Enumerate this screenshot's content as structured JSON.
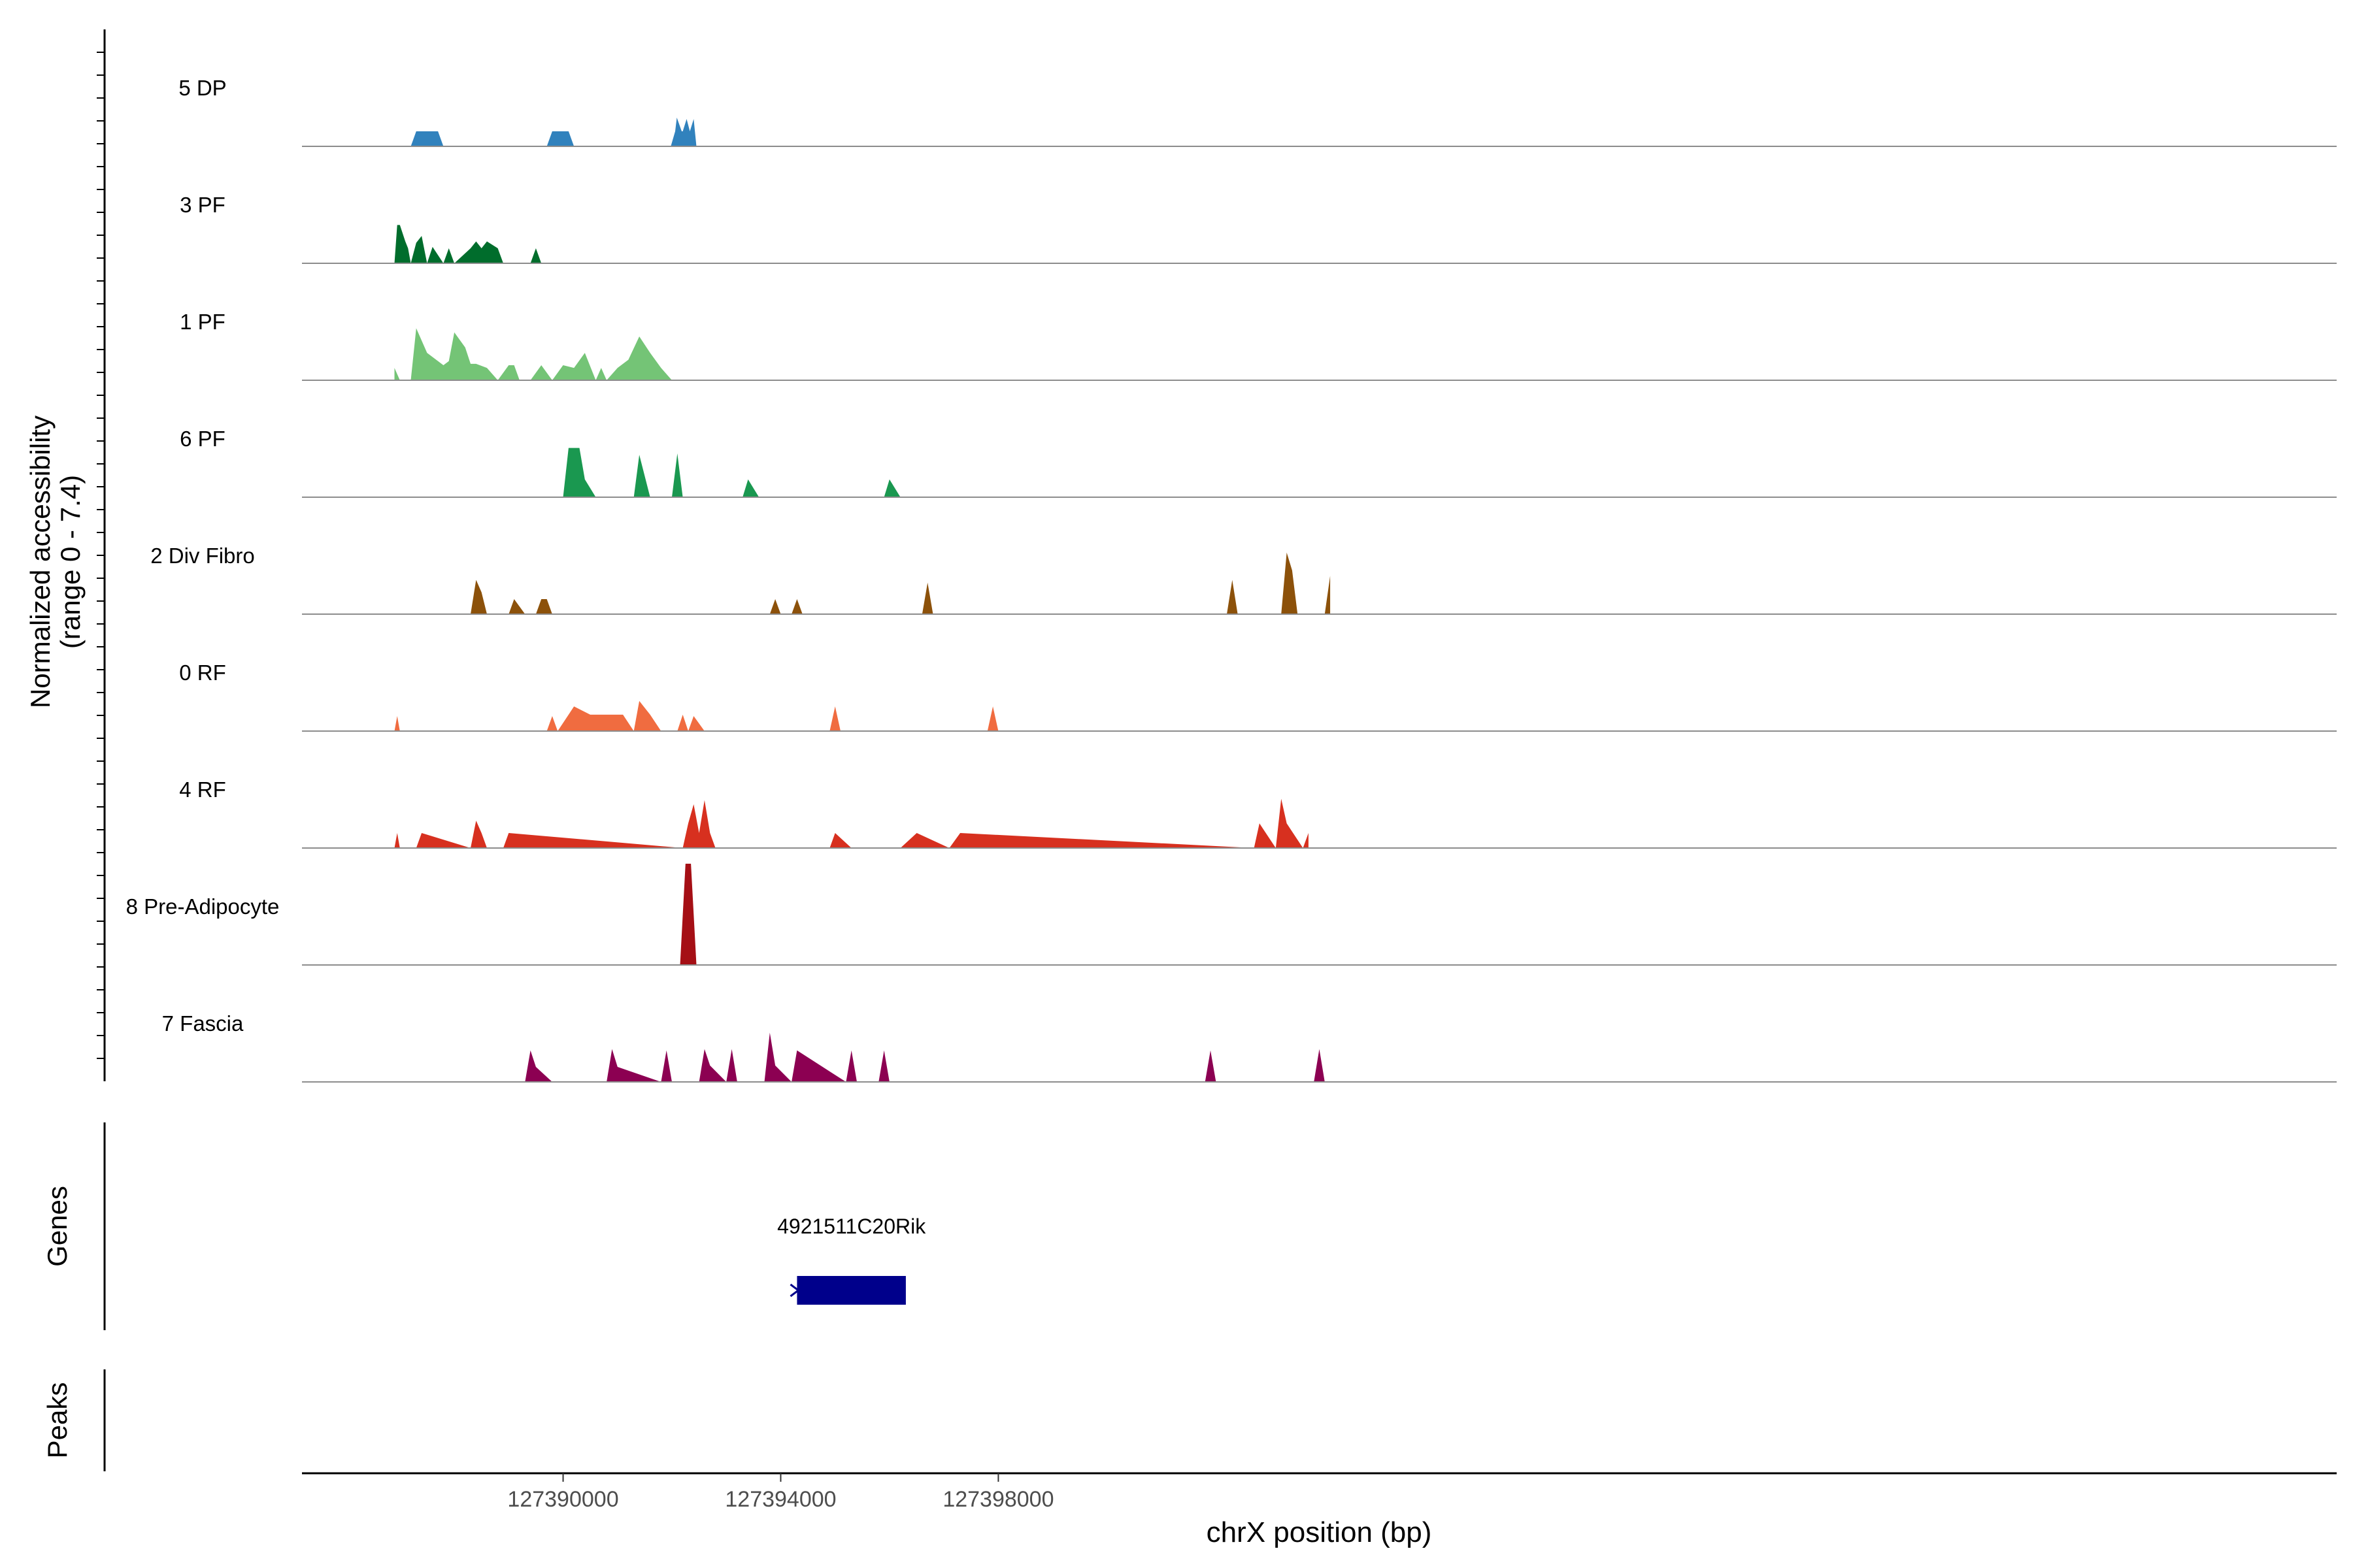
{
  "chart_data": {
    "type": "area",
    "figure_kind": "coverage-track",
    "y_axis_label_line1": "Normalized accessibility",
    "y_axis_label_line2": "(range 0 - 7.4)",
    "y_range": [
      0,
      7.4
    ],
    "xlabel": "chrX position (bp)",
    "xlim": [
      127385200,
      127422600
    ],
    "x_ticks": [
      127390000,
      127394000,
      127398000
    ],
    "x_tick_labels": [
      "127390000",
      "127394000",
      "127398000"
    ],
    "genes_label": "Genes",
    "peaks_label": "Peaks",
    "series": [
      {
        "name": "5 DP",
        "color": "#3182bd",
        "x": [
          127387200,
          127387300,
          127387400,
          127387700,
          127387800,
          127389700,
          127389800,
          127389900,
          127390100,
          127390200,
          127391980,
          127392060,
          127392090,
          127392180,
          127392200,
          127392270,
          127392330,
          127392400,
          127392450
        ],
        "y": [
          0,
          1.1,
          1.1,
          1.1,
          0,
          0,
          1.1,
          1.1,
          1.1,
          0,
          0,
          1.1,
          2.1,
          1.1,
          1.1,
          2.0,
          1.1,
          2.0,
          0
        ]
      },
      {
        "name": "3 PF",
        "color": "#006d2c",
        "x": [
          127386900,
          127386950,
          127387000,
          127387100,
          127387150,
          127387200,
          127387300,
          127387400,
          127387500,
          127387600,
          127387800,
          127387900,
          127388000,
          127388300,
          127388400,
          127388500,
          127388600,
          127388800,
          127388900,
          127389000,
          127389100,
          127389200,
          127389400,
          127389500,
          127389600,
          127392300,
          127392400,
          127392500,
          127392700,
          127392800,
          127393000,
          127393100,
          127393300,
          127393400,
          127393600,
          127393800,
          127394000,
          127394200,
          127394300,
          127394400,
          127394500,
          127394600,
          127394650,
          127394700,
          127394800,
          127395000,
          127395200,
          127395400,
          127395600,
          127395800,
          127396000,
          127396200,
          127396400,
          127396600,
          127396800,
          127397000
        ],
        "y": [
          0,
          2.8,
          2.8,
          1.6,
          1.1,
          0,
          1.5,
          2.0,
          0,
          1.2,
          0,
          1.1,
          0,
          1.1,
          1.6,
          1.1,
          1.6,
          1.1,
          0,
          0,
          0,
          0,
          0,
          1.1,
          0,
          0,
          0,
          0,
          0,
          0,
          0,
          0,
          0,
          0,
          0,
          0,
          0,
          0,
          0,
          0,
          0,
          0,
          0,
          0,
          0,
          0,
          0,
          0,
          0,
          0,
          0,
          0,
          0,
          0,
          0,
          0
        ]
      },
      {
        "name": "1 PF",
        "color": "#74c476",
        "x": [
          127386900,
          127387000,
          127387200,
          127387300,
          127387500,
          127387800,
          127387900,
          127388000,
          127388200,
          127388300,
          127388400,
          127388600,
          127388800,
          127389000,
          127389100,
          127389200,
          127389400,
          127389600,
          127389800,
          127390000,
          127390200,
          127390400,
          127390600,
          127390700,
          127390800,
          127391000,
          127391200,
          127391400,
          127391600,
          127391800,
          127392000,
          127392200,
          127392400,
          127392600,
          127392800,
          127393000,
          127393200,
          127393400,
          127393600,
          127393800,
          127394000,
          127394200,
          127394400,
          127394600,
          127394800,
          127395000,
          127395200,
          127395400,
          127395600,
          127395800,
          127396000
        ],
        "y": [
          0.9,
          0,
          0,
          3.8,
          2.0,
          1.1,
          1.4,
          3.5,
          2.4,
          1.2,
          1.2,
          0.9,
          0,
          1.1,
          1.1,
          0,
          0,
          1.1,
          0,
          1.1,
          0.9,
          2.0,
          0,
          0.9,
          0,
          0.9,
          1.5,
          3.2,
          2.0,
          0.9,
          0,
          0,
          0,
          0,
          0,
          0,
          0,
          0,
          0,
          0,
          0,
          0,
          0,
          0,
          0,
          0,
          0,
          0,
          0,
          0,
          0
        ]
      },
      {
        "name": "6 PF",
        "color": "#1a9850",
        "x": [
          127390000,
          127390100,
          127390300,
          127390400,
          127390600,
          127391300,
          127391400,
          127391600,
          127392000,
          127392100,
          127392200,
          127393300,
          127393400,
          127393600,
          127395900,
          127396000,
          127396200,
          127396400,
          127396600,
          127396800,
          127397000,
          127397200,
          127397400,
          127397600,
          127397800,
          127398000,
          127398200,
          127398400,
          127398600,
          127398800,
          127399000,
          127399200,
          127399400,
          127399600,
          127399800,
          127400000,
          127400200,
          127400400,
          127400600,
          127400800,
          127401000,
          127401200,
          127401400,
          127401600,
          127401800,
          127402000,
          127402200,
          127402400,
          127402600,
          127402800,
          127403000
        ],
        "y": [
          0,
          3.6,
          3.6,
          1.3,
          0,
          0,
          3.1,
          0,
          0,
          3.2,
          0,
          0,
          1.3,
          0,
          0,
          1.3,
          0,
          0,
          0,
          0,
          0,
          0,
          0,
          0,
          0,
          0,
          0,
          0,
          0,
          0,
          0,
          0,
          0,
          0,
          0,
          0,
          0,
          0,
          0,
          0,
          0,
          0,
          0,
          0,
          0,
          0,
          0,
          0,
          0,
          0,
          0
        ]
      },
      {
        "name": "2 Div Fibro",
        "color": "#8c510a",
        "x": [
          127388300,
          127388400,
          127388500,
          127388600,
          127389000,
          127389100,
          127389300,
          127389500,
          127389600,
          127389700,
          127389800,
          127393800,
          127393900,
          127394000,
          127394200,
          127394300,
          127394400,
          127396600,
          127396700,
          127396800,
          127402200,
          127402300,
          127402400,
          127403200,
          127403300,
          127403400,
          127403500,
          127404000,
          127404100
        ],
        "y": [
          0,
          2.5,
          1.6,
          0,
          0,
          1.1,
          0,
          0,
          1.1,
          1.1,
          0,
          0,
          1.1,
          0,
          0,
          1.1,
          0,
          0,
          2.3,
          0,
          0,
          2.5,
          0,
          0,
          4.5,
          3.2,
          0,
          0,
          2.8
        ]
      },
      {
        "name": "0 RF",
        "color": "#f06c40",
        "x": [
          127386900,
          127386950,
          127387000,
          127389700,
          127389800,
          127389900,
          127390100,
          127390200,
          127390500,
          127390700,
          127390900,
          127391100,
          127391300,
          127391400,
          127391600,
          127391800,
          127392100,
          127392200,
          127392300,
          127392400,
          127392600,
          127394900,
          127395000,
          127395100,
          127397800,
          127397900,
          127398000,
          127400000,
          127402000,
          127404000
        ],
        "y": [
          0,
          1.1,
          0,
          0,
          1.1,
          0,
          1.2,
          1.8,
          1.2,
          1.2,
          1.2,
          1.2,
          0,
          2.2,
          1.2,
          0,
          0,
          1.2,
          0,
          1.1,
          0,
          0,
          1.8,
          0,
          0,
          1.8,
          0,
          0,
          0,
          0
        ]
      },
      {
        "name": "4 RF",
        "color": "#d7301f",
        "x": [
          127386900,
          127386950,
          127387000,
          127387300,
          127387400,
          127388300,
          127388400,
          127388500,
          127388600,
          127388900,
          127389000,
          127392200,
          127392300,
          127392400,
          127392500,
          127392600,
          127392700,
          127392800,
          127394900,
          127395000,
          127395300,
          127396200,
          127396500,
          127397100,
          127397300,
          127402700,
          127402800,
          127403100,
          127403200,
          127403300,
          127403600,
          127403700
        ],
        "y": [
          0,
          1.1,
          0,
          0,
          1.1,
          0,
          2.0,
          1.1,
          0,
          0,
          1.1,
          0,
          1.8,
          3.2,
          1.1,
          3.5,
          1.1,
          0,
          0,
          1.1,
          0,
          0,
          1.1,
          0,
          1.1,
          0,
          1.8,
          0,
          3.6,
          1.8,
          0,
          1.1
        ]
      },
      {
        "name": "8 Pre-Adipocyte",
        "color": "#a50f15",
        "x": [
          127392150,
          127392250,
          127392350,
          127392450
        ],
        "y": [
          0,
          7.4,
          7.4,
          0
        ]
      },
      {
        "name": "7 Fascia",
        "color": "#8c0052",
        "x": [
          127389300,
          127389400,
          127389500,
          127389800,
          127390800,
          127390900,
          127391000,
          127391800,
          127391900,
          127392000,
          127392500,
          127392600,
          127392700,
          127393000,
          127393100,
          127393200,
          127393700,
          127393800,
          127393900,
          127394200,
          127394300,
          127395200,
          127395300,
          127395400,
          127395800,
          127395900,
          127396000,
          127401800,
          127401900,
          127402000,
          127403800,
          127403900,
          127404000
        ],
        "y": [
          0,
          2.3,
          1.1,
          0,
          0,
          2.4,
          1.1,
          0,
          2.3,
          0,
          0,
          2.4,
          1.2,
          0,
          2.4,
          0,
          0,
          3.6,
          1.2,
          0,
          2.3,
          0,
          2.3,
          0,
          0,
          2.3,
          0,
          0,
          2.3,
          0,
          0,
          2.4,
          0
        ]
      }
    ],
    "genes": [
      {
        "name": "4921511C20Rik",
        "start": 127394300,
        "end": 127396300,
        "strand": "-",
        "color": "#00008b"
      }
    ],
    "peaks": []
  }
}
